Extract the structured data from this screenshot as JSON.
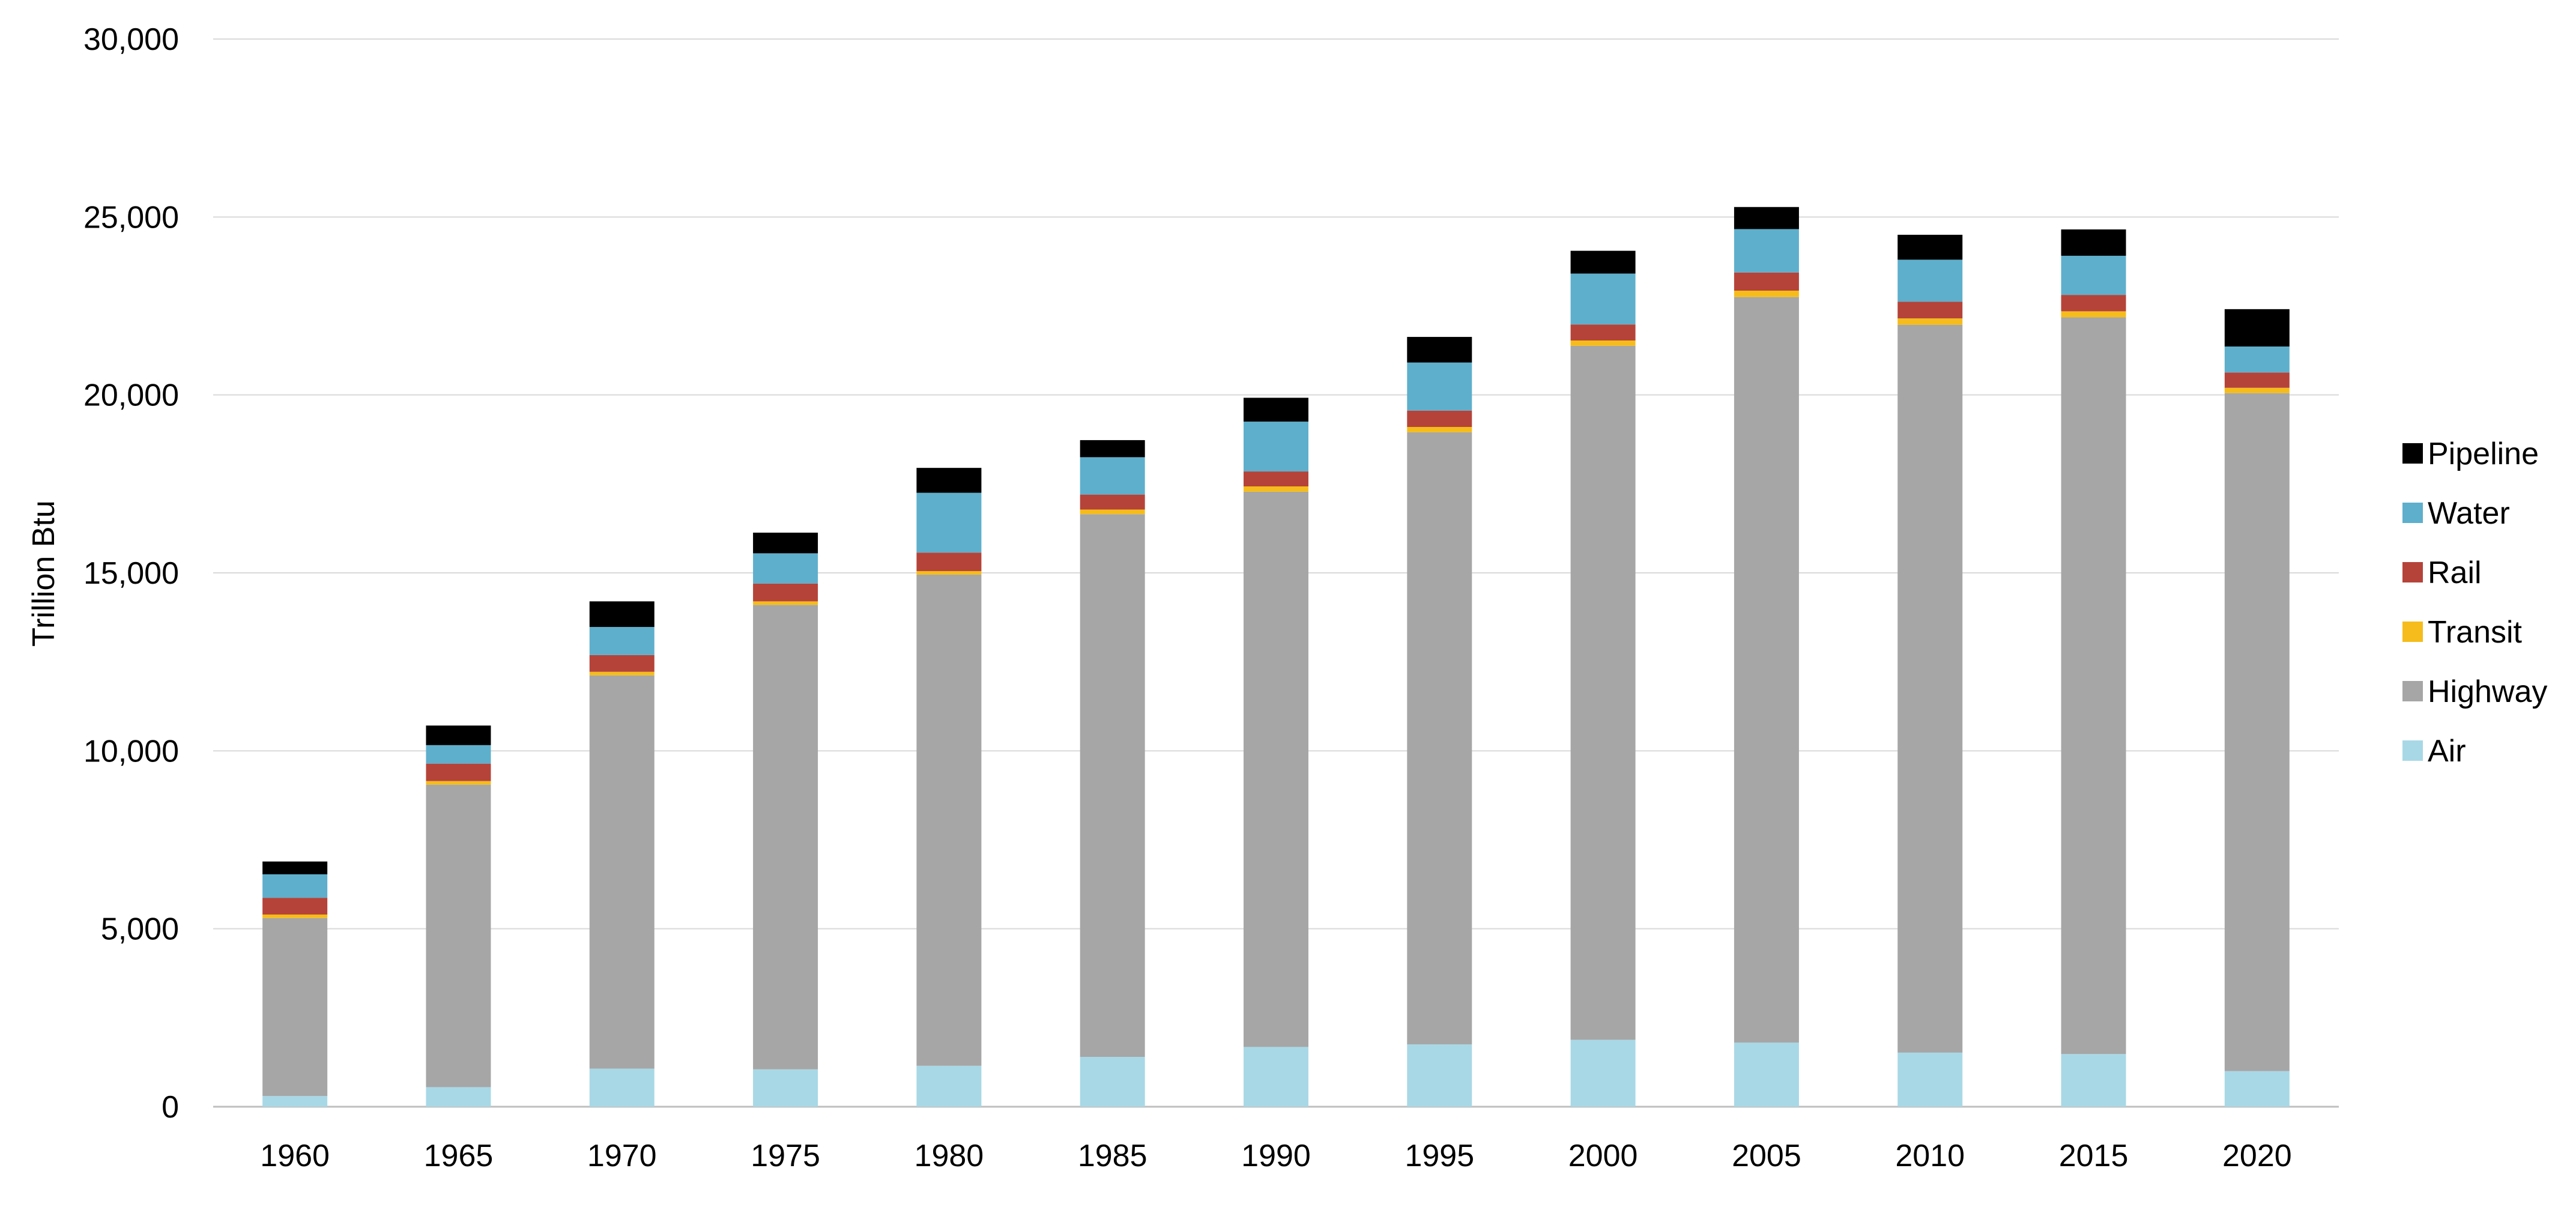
{
  "chart_data": {
    "type": "bar",
    "stacked": true,
    "title": "",
    "xlabel": "",
    "ylabel": "Trillion Btu",
    "ylim": [
      0,
      30000
    ],
    "yticks": [
      0,
      5000,
      10000,
      15000,
      20000,
      25000,
      30000
    ],
    "ytick_labels": [
      "0",
      "5,000",
      "10,000",
      "15,000",
      "20,000",
      "25,000",
      "30,000"
    ],
    "grid": true,
    "legend_position": "right",
    "categories": [
      "1960",
      "1965",
      "1970",
      "1975",
      "1980",
      "1985",
      "1990",
      "1995",
      "2000",
      "2005",
      "2010",
      "2015",
      "2020"
    ],
    "series": [
      {
        "name": "Air",
        "color": "#a8d8e6",
        "values": [
          300,
          550,
          1070,
          1050,
          1150,
          1400,
          1680,
          1750,
          1880,
          1800,
          1520,
          1480,
          1000
        ]
      },
      {
        "name": "Highway",
        "color": "#a6a6a6",
        "values": [
          5000,
          8500,
          11050,
          13050,
          13800,
          15250,
          15600,
          17200,
          19500,
          20950,
          20450,
          20700,
          19050
        ]
      },
      {
        "name": "Transit",
        "color": "#f5bc1b",
        "values": [
          100,
          100,
          100,
          100,
          100,
          130,
          150,
          150,
          150,
          180,
          180,
          170,
          150
        ]
      },
      {
        "name": "Rail",
        "color": "#b5433a",
        "values": [
          470,
          490,
          470,
          500,
          520,
          420,
          420,
          460,
          450,
          510,
          470,
          460,
          430
        ]
      },
      {
        "name": "Water",
        "color": "#5eafcc",
        "values": [
          660,
          520,
          790,
          850,
          1680,
          1050,
          1400,
          1350,
          1430,
          1220,
          1180,
          1100,
          730
        ]
      },
      {
        "name": "Pipeline",
        "color": "#000000",
        "values": [
          360,
          550,
          720,
          580,
          700,
          480,
          670,
          720,
          640,
          620,
          700,
          740,
          1050
        ]
      }
    ]
  }
}
